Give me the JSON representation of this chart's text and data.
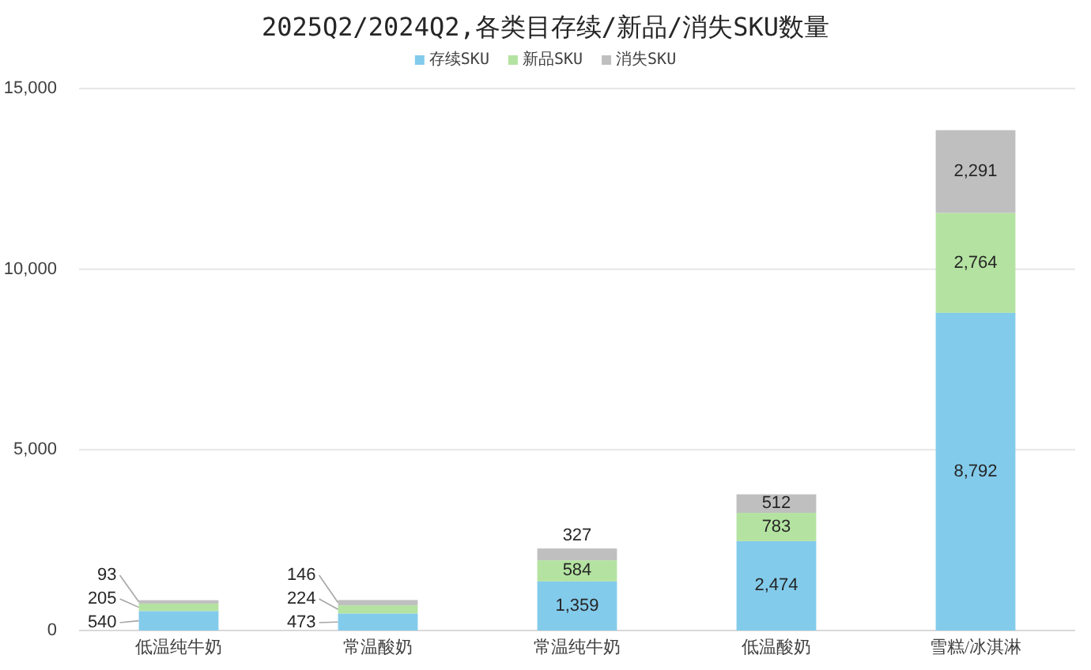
{
  "chart_data": {
    "type": "bar",
    "stacked": true,
    "title": "2025Q2/2024Q2,各类目存续/新品/消失SKU数量",
    "categories": [
      "低温纯牛奶",
      "常温酸奶",
      "常温纯牛奶",
      "低温酸奶",
      "雪糕/冰淇淋"
    ],
    "series": [
      {
        "name": "存续SKU",
        "color": "#83cbeb",
        "values": [
          540,
          473,
          1359,
          2474,
          8792
        ],
        "value_labels": [
          "540",
          "473",
          "1,359",
          "2,474",
          "8,792"
        ]
      },
      {
        "name": "新品SKU",
        "color": "#b4e3a1",
        "values": [
          205,
          224,
          584,
          783,
          2764
        ],
        "value_labels": [
          "205",
          "224",
          "584",
          "783",
          "2,764"
        ]
      },
      {
        "name": "消失SKU",
        "color": "#bfbfbf",
        "values": [
          93,
          146,
          327,
          512,
          2291
        ],
        "value_labels": [
          "93",
          "146",
          "327",
          "512",
          "2,291"
        ]
      }
    ],
    "ylim": [
      0,
      15000
    ],
    "yticks": [
      0,
      {
        "value": 5000,
        "label": "5,000"
      },
      {
        "value": 10000,
        "label": "10,000"
      },
      {
        "value": 15000,
        "label": "15,000"
      }
    ],
    "grid": "y",
    "legend": "top"
  }
}
